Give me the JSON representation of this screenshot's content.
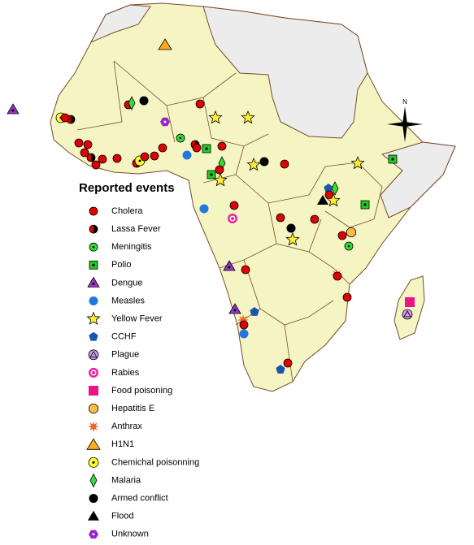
{
  "legend": {
    "title": "Reported events",
    "items": [
      "Cholera",
      "Lassa Fever",
      "Meningitis",
      "Polio",
      "Dengue",
      "Measles",
      "Yellow Fever",
      "CCHF",
      "Plague",
      "Rabies",
      "Food poisoning",
      "Hepatitis E",
      "Anthrax",
      "H1N1",
      "Chemichal poisonning",
      "Malaria",
      "Armed conflict",
      "Flood",
      "Unknown"
    ]
  }
}
